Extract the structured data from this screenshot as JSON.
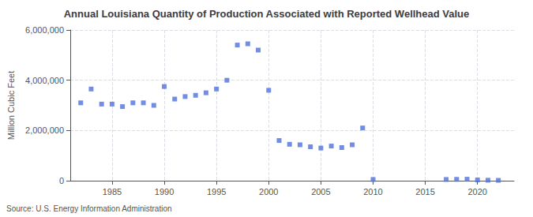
{
  "chart_data": {
    "type": "scatter",
    "title": "Annual Louisiana Quantity of Production Associated with Reported Wellhead Value",
    "y_label": "Million Cubic Feet",
    "annotations": [
      "Source: U.S. Energy Information Administration"
    ],
    "marker": "square",
    "grid": true,
    "x": [
      1982,
      1983,
      1984,
      1985,
      1986,
      1987,
      1988,
      1989,
      1990,
      1991,
      1992,
      1993,
      1994,
      1995,
      1996,
      1997,
      1998,
      1999,
      2000,
      2001,
      2002,
      2003,
      2004,
      2005,
      2006,
      2007,
      2008,
      2009,
      2010,
      2017,
      2018,
      2019,
      2020,
      2021,
      2022
    ],
    "values": [
      3100000,
      3650000,
      3050000,
      3050000,
      2950000,
      3100000,
      3100000,
      3000000,
      3750000,
      3250000,
      3350000,
      3400000,
      3500000,
      3650000,
      4000000,
      5400000,
      5450000,
      5200000,
      3600000,
      1600000,
      1450000,
      1430000,
      1350000,
      1300000,
      1380000,
      1320000,
      1430000,
      2100000,
      50000,
      50000,
      55000,
      60000,
      30000,
      20000,
      15000
    ],
    "xlim": [
      1981,
      2023.5
    ],
    "xticks": [
      1985,
      1990,
      1995,
      2000,
      2005,
      2010,
      2015,
      2020
    ],
    "ylim": [
      0,
      6000000
    ],
    "yticks": [
      0,
      {
        "value": 2000000,
        "label": "2,000,000"
      },
      {
        "value": 4000000,
        "label": "4,000,000"
      },
      {
        "value": 6000000,
        "label": "6,000,000"
      }
    ]
  }
}
